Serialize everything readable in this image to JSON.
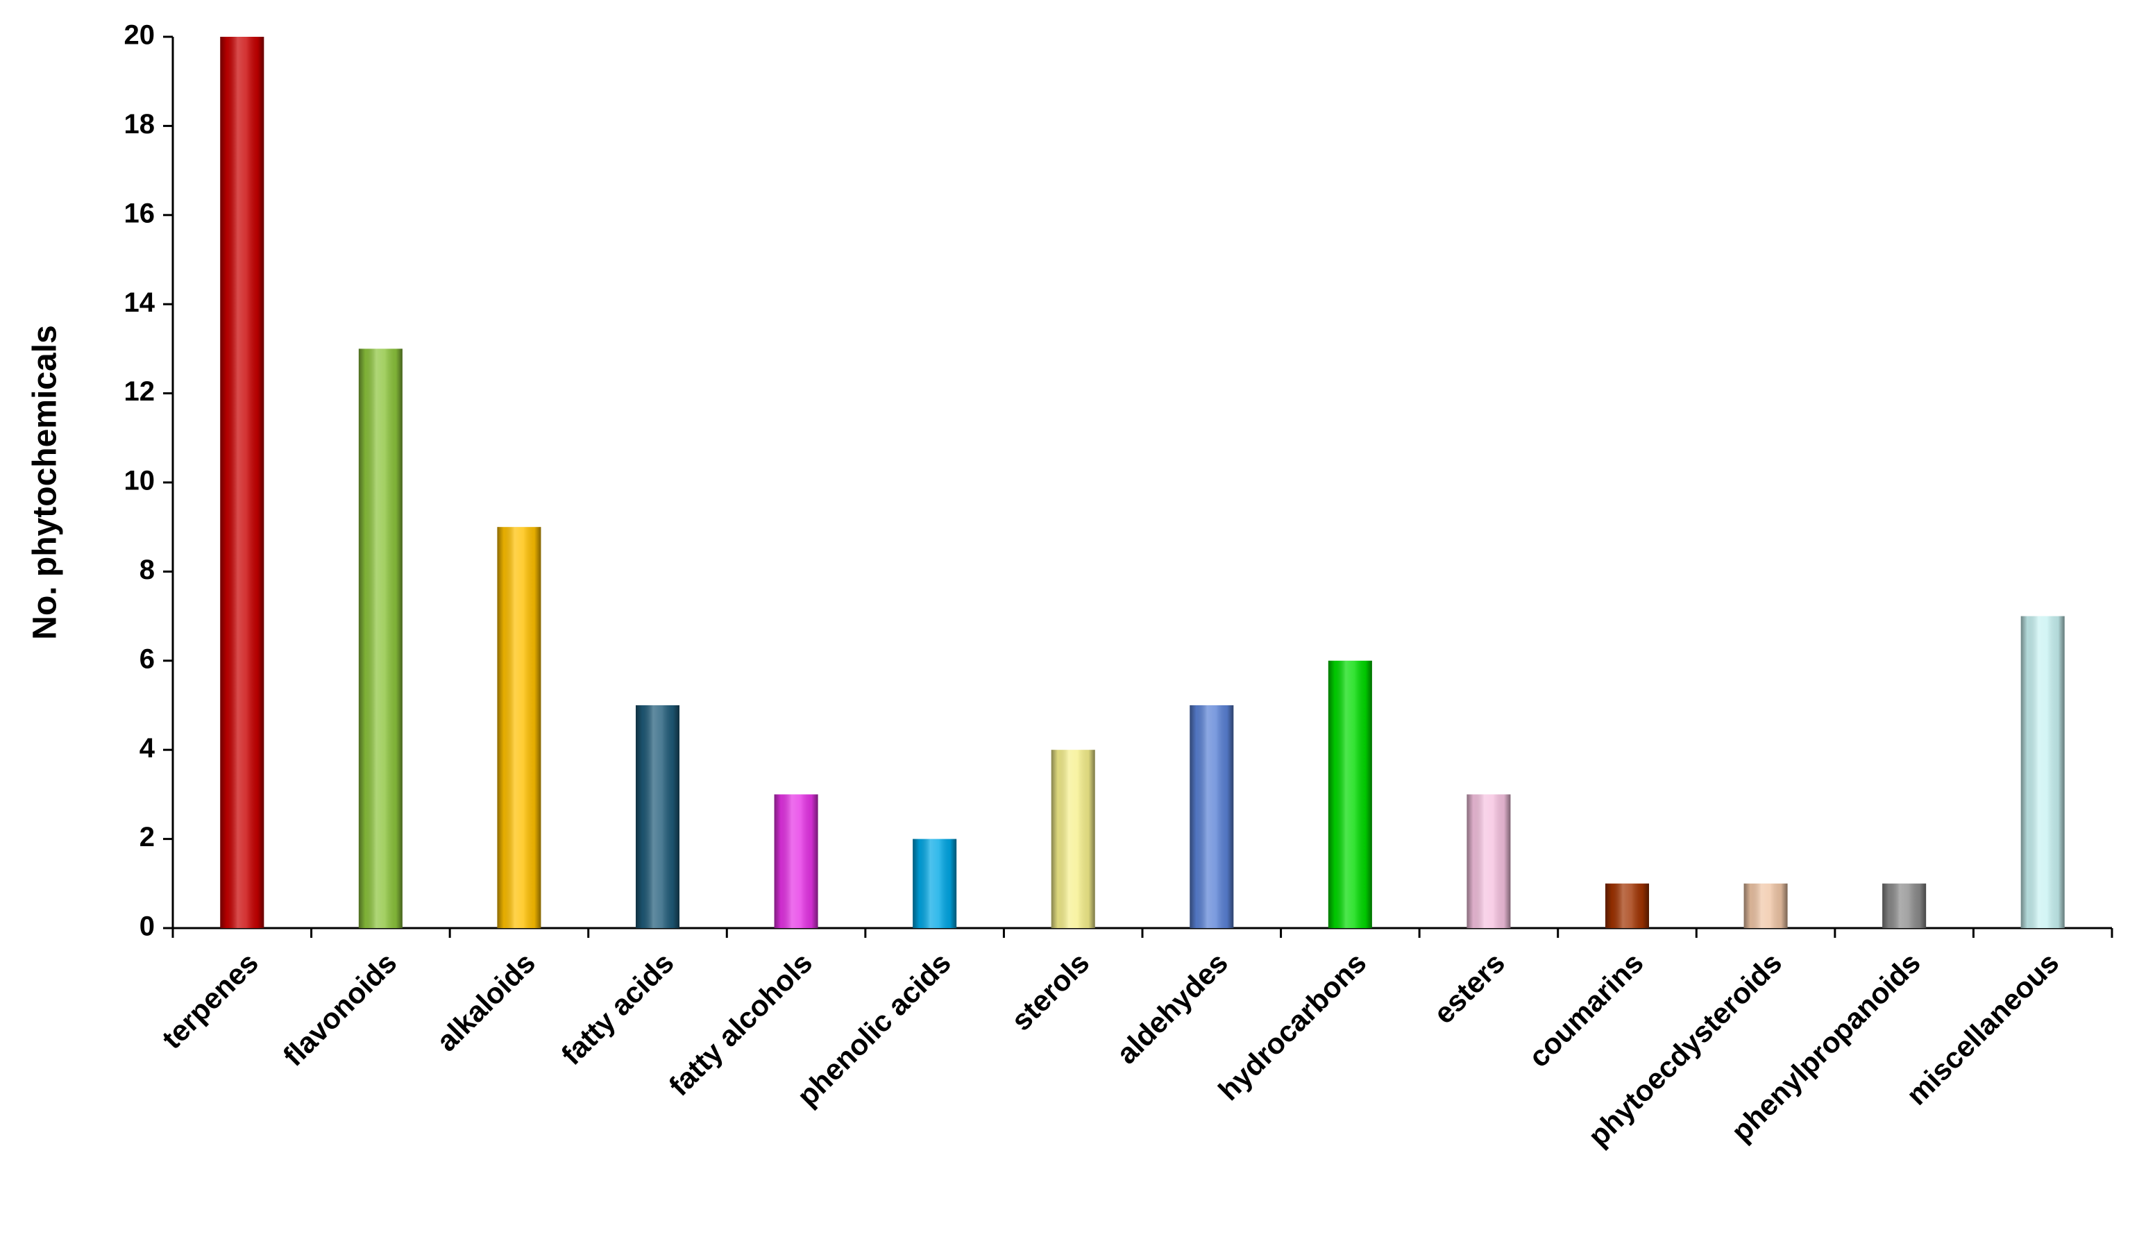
{
  "chart_data": {
    "type": "bar",
    "ylabel": "No. phytochemicals",
    "categories": [
      "terpenes",
      "flavonoids",
      "alkaloids",
      "fatty acids",
      "fatty alcohols",
      "phenolic acids",
      "sterols",
      "aldehydes",
      "hydrocarbons",
      "esters",
      "coumarins",
      "phytoecdysteroids",
      "phenylpropanoids",
      "miscellaneous"
    ],
    "values": [
      20,
      13,
      9,
      5,
      3,
      2,
      4,
      5,
      6,
      3,
      1,
      1,
      1,
      7
    ],
    "colors": [
      "#c80000",
      "#8cc43c",
      "#ffc000",
      "#1e5a78",
      "#e632e6",
      "#00a8e6",
      "#f6f08c",
      "#5a82d6",
      "#00dc00",
      "#f6c2e0",
      "#a03200",
      "#f0c6a6",
      "#8c8c8c",
      "#c8f2f2"
    ],
    "ylim": [
      0,
      20
    ],
    "yticks": [
      0,
      2,
      4,
      6,
      8,
      10,
      12,
      14,
      16,
      18,
      20
    ],
    "grid": false
  }
}
